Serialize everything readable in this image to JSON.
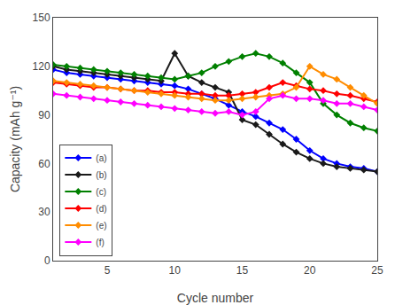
{
  "chart_data": {
    "type": "line",
    "x_label": "Cycle number",
    "y_label": "Capacity (mAh g⁻¹)",
    "x": [
      1,
      2,
      3,
      4,
      5,
      6,
      7,
      8,
      9,
      10,
      11,
      12,
      13,
      14,
      15,
      16,
      17,
      18,
      19,
      20,
      21,
      22,
      23,
      24,
      25
    ],
    "series": [
      {
        "name": "(a)",
        "color": "#0000FF",
        "values": [
          118,
          116,
          115,
          114,
          113,
          112,
          111,
          110,
          109,
          108,
          106,
          103,
          100,
          96,
          92,
          89,
          85,
          81,
          75,
          68,
          63,
          60,
          58,
          57,
          55
        ]
      },
      {
        "name": "(b)",
        "color": "#1a1a1a",
        "values": [
          120,
          118,
          117,
          116,
          115,
          114,
          113,
          112,
          111,
          128,
          114,
          110,
          107,
          104,
          87,
          84,
          78,
          72,
          67,
          63,
          60,
          58,
          57,
          56,
          55
        ]
      },
      {
        "name": "(c)",
        "color": "#008000",
        "values": [
          121,
          120,
          119,
          118,
          117,
          116,
          115,
          114,
          113,
          112,
          114,
          116,
          120,
          123,
          126,
          128,
          126,
          122,
          116,
          110,
          97,
          90,
          85,
          82,
          80
        ]
      },
      {
        "name": "(d)",
        "color": "#FF0000",
        "values": [
          110,
          109,
          108,
          107,
          107,
          106,
          105,
          105,
          104,
          104,
          103,
          103,
          102,
          102,
          103,
          104,
          107,
          110,
          108,
          106,
          105,
          103,
          102,
          100,
          98
        ]
      },
      {
        "name": "(e)",
        "color": "#FF8C00",
        "values": [
          111,
          110,
          109,
          108,
          107,
          106,
          105,
          104,
          103,
          102,
          101,
          100,
          99,
          99,
          100,
          101,
          102,
          103,
          107,
          120,
          115,
          112,
          107,
          102,
          97
        ]
      },
      {
        "name": "(f)",
        "color": "#FF00FF",
        "values": [
          103,
          102,
          101,
          100,
          99,
          98,
          97,
          96,
          95,
          94,
          93,
          92,
          91,
          92,
          90,
          92,
          100,
          102,
          100,
          100,
          99,
          97,
          97,
          95,
          93
        ]
      }
    ],
    "xlim": [
      1,
      25
    ],
    "ylim": [
      0,
      150
    ],
    "xticks": [
      5,
      10,
      15,
      20,
      25
    ],
    "yticks": [
      0,
      30,
      60,
      90,
      120,
      150
    ],
    "marker": "diamond",
    "line_style": "solid",
    "grid": false,
    "legend": "lower left"
  }
}
